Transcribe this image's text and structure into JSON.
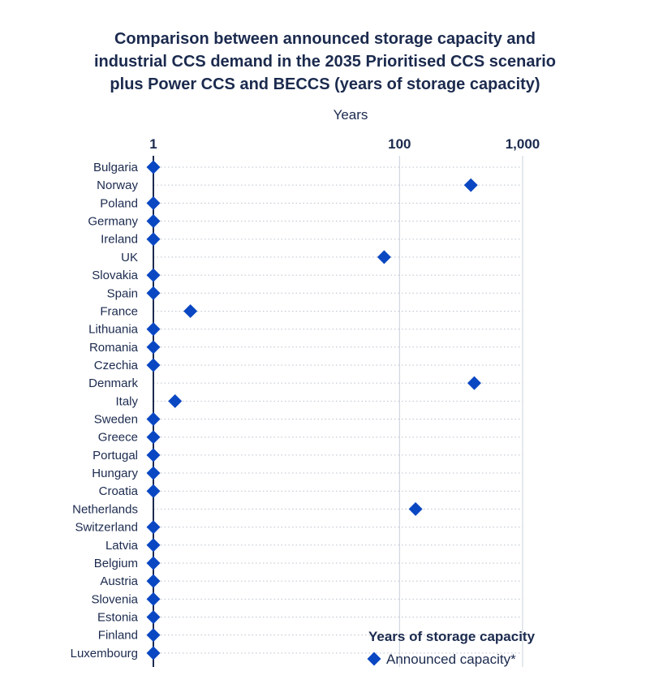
{
  "chart_data": {
    "type": "scatter",
    "title_lines": [
      "Comparison between announced storage capacity and",
      "industrial CCS demand in the 2035 Prioritised CCS scenario",
      "plus Power CCS and BECCS (years of storage capacity)"
    ],
    "xlabel": "Years",
    "x_scale": "log",
    "xlim": [
      1,
      1000
    ],
    "x_ticks": [
      1,
      100,
      1000
    ],
    "x_tick_labels": [
      "1",
      "100",
      "1,000"
    ],
    "grid": true,
    "legend_title": "Years of storage capacity",
    "legend_position": "bottom-right",
    "series": [
      {
        "name": "Announced capacity*",
        "color": "#0a47c2"
      }
    ],
    "categories": [
      "Bulgaria",
      "Norway",
      "Poland",
      "Germany",
      "Ireland",
      "UK",
      "Slovakia",
      "Spain",
      "France",
      "Lithuania",
      "Romania",
      "Czechia",
      "Denmark",
      "Italy",
      "Sweden",
      "Greece",
      "Portugal",
      "Hungary",
      "Croatia",
      "Netherlands",
      "Switzerland",
      "Latvia",
      "Belgium",
      "Austria",
      "Slovenia",
      "Estonia",
      "Finland",
      "Luxembourg"
    ],
    "values": [
      1,
      380,
      1,
      1,
      1,
      75,
      1,
      1,
      2,
      1,
      1,
      1,
      405,
      1.5,
      1,
      1,
      1,
      1,
      1,
      135,
      1,
      1,
      1,
      1,
      1,
      1,
      1,
      1
    ]
  },
  "colors": {
    "text": "#1b2a4e",
    "marker": "#0a47c2",
    "axis": "#1b2a4e",
    "gridline": "#c9d0da",
    "dotted": "#b9c0cb"
  }
}
